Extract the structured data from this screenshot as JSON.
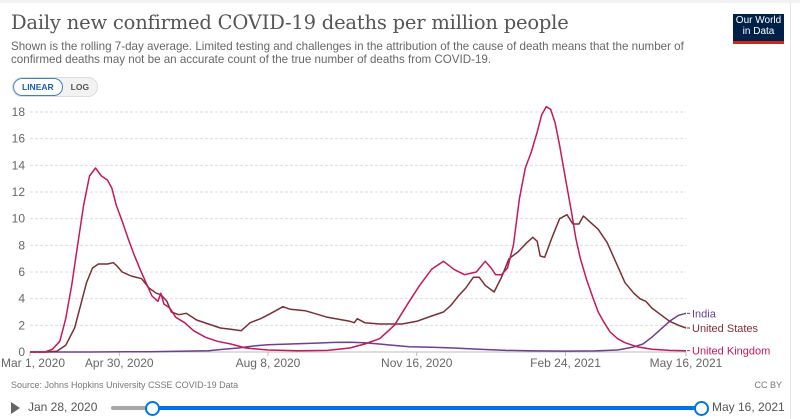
{
  "header": {
    "title": "Daily new confirmed COVID-19 deaths per million people",
    "subtitle": "Shown is the rolling 7-day average. Limited testing and challenges in the attribution of the cause of death means that the number of confirmed deaths may not be an accurate count of the true number of deaths from COVID-19.",
    "logo_line1": "Our World",
    "logo_line2": "in Data"
  },
  "controls": {
    "linear_label": "LINEAR",
    "log_label": "LOG",
    "selected": "LINEAR"
  },
  "footer": {
    "source": "Source: Johns Hopkins University CSSE COVID-19 Data",
    "license": "CC BY"
  },
  "timeline": {
    "start_label": "Jan 28, 2020",
    "end_label": "May 16, 2021",
    "selected_start_fraction": 0.07,
    "selected_end_fraction": 1.0
  },
  "colors": {
    "India": "#6d3e91",
    "United States": "#7c2f33",
    "United Kingdom": "#c5185d",
    "grid": "#dddddd",
    "accent": "#0073e6"
  },
  "chart_data": {
    "type": "line",
    "title": "Daily new confirmed COVID-19 deaths per million people",
    "xlabel": "",
    "ylabel": "",
    "x_unit": "days since Mar 1, 2020",
    "xlim": [
      0,
      441
    ],
    "ylim": [
      0,
      18
    ],
    "yticks": [
      0,
      2,
      4,
      6,
      8,
      10,
      12,
      14,
      16,
      18
    ],
    "xticks": [
      {
        "day": 0,
        "label": "Mar 1, 2020"
      },
      {
        "day": 60,
        "label": "Apr 30, 2020"
      },
      {
        "day": 160,
        "label": "Aug 8, 2020"
      },
      {
        "day": 260,
        "label": "Nov 16, 2020"
      },
      {
        "day": 360,
        "label": "Feb 24, 2021"
      },
      {
        "day": 441,
        "label": "May 16, 2021"
      }
    ],
    "grid": true,
    "legend": "right-end labels",
    "series": [
      {
        "name": "India",
        "points": [
          [
            0,
            0
          ],
          [
            40,
            0
          ],
          [
            80,
            0.02
          ],
          [
            100,
            0.05
          ],
          [
            120,
            0.1
          ],
          [
            130,
            0.2
          ],
          [
            140,
            0.3
          ],
          [
            150,
            0.45
          ],
          [
            160,
            0.55
          ],
          [
            175,
            0.6
          ],
          [
            190,
            0.65
          ],
          [
            205,
            0.72
          ],
          [
            215,
            0.73
          ],
          [
            225,
            0.7
          ],
          [
            240,
            0.55
          ],
          [
            255,
            0.4
          ],
          [
            270,
            0.35
          ],
          [
            285,
            0.3
          ],
          [
            300,
            0.22
          ],
          [
            320,
            0.12
          ],
          [
            340,
            0.08
          ],
          [
            360,
            0.07
          ],
          [
            380,
            0.08
          ],
          [
            395,
            0.15
          ],
          [
            405,
            0.35
          ],
          [
            412,
            0.6
          ],
          [
            418,
            1.1
          ],
          [
            424,
            1.7
          ],
          [
            430,
            2.3
          ],
          [
            436,
            2.75
          ],
          [
            441,
            2.9
          ]
        ]
      },
      {
        "name": "United States",
        "points": [
          [
            0,
            0
          ],
          [
            10,
            0
          ],
          [
            18,
            0.05
          ],
          [
            24,
            0.5
          ],
          [
            30,
            1.8
          ],
          [
            34,
            3.5
          ],
          [
            38,
            5.2
          ],
          [
            42,
            6.3
          ],
          [
            46,
            6.6
          ],
          [
            52,
            6.6
          ],
          [
            56,
            6.7
          ],
          [
            58,
            6.5
          ],
          [
            62,
            6.0
          ],
          [
            68,
            5.7
          ],
          [
            75,
            5.5
          ],
          [
            80,
            4.8
          ],
          [
            85,
            4.4
          ],
          [
            88,
            4.3
          ],
          [
            92,
            3.8
          ],
          [
            95,
            3.0
          ],
          [
            100,
            2.8
          ],
          [
            105,
            2.9
          ],
          [
            112,
            2.4
          ],
          [
            120,
            2.1
          ],
          [
            128,
            1.8
          ],
          [
            135,
            1.7
          ],
          [
            142,
            1.6
          ],
          [
            148,
            2.2
          ],
          [
            155,
            2.5
          ],
          [
            162,
            2.9
          ],
          [
            170,
            3.4
          ],
          [
            175,
            3.2
          ],
          [
            185,
            3.1
          ],
          [
            200,
            2.6
          ],
          [
            215,
            2.3
          ],
          [
            218,
            2.2
          ],
          [
            220,
            2.5
          ],
          [
            225,
            2.2
          ],
          [
            235,
            2.1
          ],
          [
            250,
            2.1
          ],
          [
            260,
            2.3
          ],
          [
            270,
            2.7
          ],
          [
            278,
            3.0
          ],
          [
            283,
            3.5
          ],
          [
            288,
            4.2
          ],
          [
            293,
            4.8
          ],
          [
            298,
            5.6
          ],
          [
            302,
            5.6
          ],
          [
            306,
            5.0
          ],
          [
            312,
            4.5
          ],
          [
            317,
            5.6
          ],
          [
            322,
            7.0
          ],
          [
            328,
            7.5
          ],
          [
            334,
            8.2
          ],
          [
            338,
            8.6
          ],
          [
            341,
            8.3
          ],
          [
            343,
            7.2
          ],
          [
            346,
            7.1
          ],
          [
            351,
            8.6
          ],
          [
            356,
            10.0
          ],
          [
            361,
            10.3
          ],
          [
            365,
            9.6
          ],
          [
            369,
            9.6
          ],
          [
            372,
            10.2
          ],
          [
            376,
            9.8
          ],
          [
            382,
            9.2
          ],
          [
            388,
            8.2
          ],
          [
            394,
            6.7
          ],
          [
            400,
            5.2
          ],
          [
            406,
            4.4
          ],
          [
            410,
            4.0
          ],
          [
            414,
            3.8
          ],
          [
            418,
            3.3
          ],
          [
            424,
            2.8
          ],
          [
            430,
            2.3
          ],
          [
            436,
            2.0
          ],
          [
            441,
            1.8
          ]
        ]
      },
      {
        "name": "United Kingdom",
        "points": [
          [
            0,
            0
          ],
          [
            10,
            0
          ],
          [
            15,
            0.2
          ],
          [
            20,
            0.8
          ],
          [
            24,
            2.5
          ],
          [
            28,
            5.0
          ],
          [
            32,
            8.0
          ],
          [
            36,
            11.0
          ],
          [
            40,
            13.2
          ],
          [
            44,
            13.8
          ],
          [
            48,
            13.2
          ],
          [
            52,
            12.9
          ],
          [
            55,
            12.3
          ],
          [
            58,
            11.0
          ],
          [
            62,
            9.8
          ],
          [
            66,
            8.5
          ],
          [
            70,
            7.3
          ],
          [
            74,
            6.2
          ],
          [
            78,
            5.2
          ],
          [
            82,
            4.2
          ],
          [
            86,
            3.8
          ],
          [
            88,
            4.4
          ],
          [
            90,
            3.6
          ],
          [
            94,
            3.3
          ],
          [
            98,
            2.6
          ],
          [
            104,
            2.2
          ],
          [
            110,
            1.6
          ],
          [
            118,
            1.1
          ],
          [
            126,
            0.8
          ],
          [
            135,
            0.6
          ],
          [
            145,
            0.3
          ],
          [
            160,
            0.15
          ],
          [
            180,
            0.1
          ],
          [
            200,
            0.12
          ],
          [
            215,
            0.3
          ],
          [
            225,
            0.6
          ],
          [
            235,
            1.0
          ],
          [
            245,
            2.0
          ],
          [
            255,
            3.8
          ],
          [
            262,
            5.0
          ],
          [
            270,
            6.2
          ],
          [
            278,
            6.8
          ],
          [
            285,
            6.2
          ],
          [
            292,
            5.8
          ],
          [
            300,
            6.0
          ],
          [
            306,
            6.8
          ],
          [
            310,
            6.3
          ],
          [
            313,
            5.8
          ],
          [
            317,
            5.8
          ],
          [
            321,
            6.3
          ],
          [
            325,
            8.0
          ],
          [
            329,
            11.5
          ],
          [
            333,
            13.8
          ],
          [
            337,
            15.0
          ],
          [
            341,
            16.5
          ],
          [
            344,
            17.8
          ],
          [
            347,
            18.4
          ],
          [
            350,
            18.2
          ],
          [
            353,
            17.2
          ],
          [
            356,
            15.5
          ],
          [
            360,
            13.0
          ],
          [
            364,
            10.5
          ],
          [
            367,
            8.5
          ],
          [
            370,
            7.0
          ],
          [
            374,
            5.5
          ],
          [
            378,
            4.2
          ],
          [
            382,
            3.0
          ],
          [
            386,
            2.2
          ],
          [
            390,
            1.5
          ],
          [
            395,
            1.0
          ],
          [
            400,
            0.7
          ],
          [
            408,
            0.4
          ],
          [
            418,
            0.2
          ],
          [
            430,
            0.12
          ],
          [
            441,
            0.1
          ]
        ]
      }
    ]
  }
}
